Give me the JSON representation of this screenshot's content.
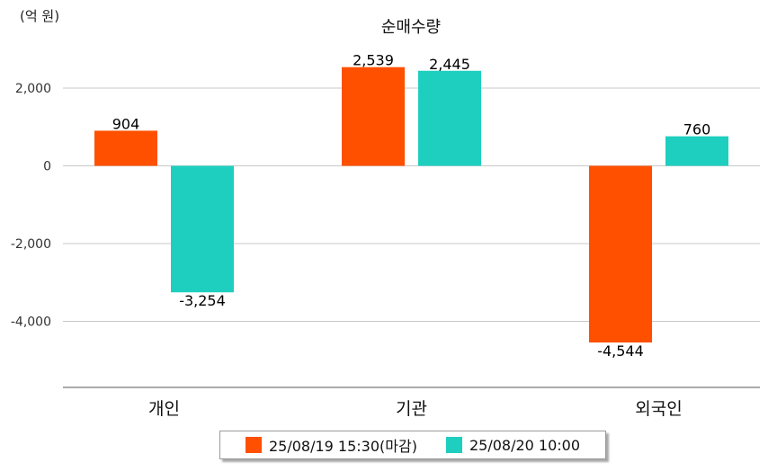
{
  "unit_label": "(억 원)",
  "chart_data": {
    "type": "bar",
    "title": "순매수량",
    "categories": [
      "개인",
      "기관",
      "외국인"
    ],
    "series": [
      {
        "name": "25/08/19 15:30(마감)",
        "color": "#FF5000",
        "values": [
          904,
          2539,
          -4544
        ]
      },
      {
        "name": "25/08/20 10:00",
        "color": "#1ECFBF",
        "values": [
          -3254,
          2445,
          760
        ]
      }
    ],
    "value_labels": [
      [
        "904",
        "2,539",
        "-4,544"
      ],
      [
        "-3,254",
        "2,445",
        "760"
      ]
    ],
    "y_ticks": [
      2000,
      0,
      -2000,
      -4000
    ],
    "y_tick_labels": [
      "2,000",
      "0",
      "-2,000",
      "-4,000"
    ],
    "ylim": [
      -5700,
      3000
    ],
    "grid": true,
    "legend": "bottom"
  }
}
